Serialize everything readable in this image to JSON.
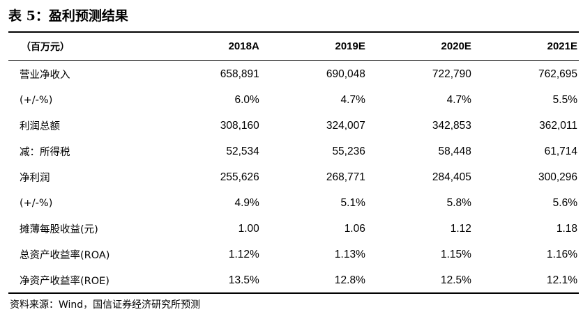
{
  "title": "表 5：盈利预测结果",
  "table": {
    "unit_header": "（百万元）",
    "year_headers": [
      "2018A",
      "2019E",
      "2020E",
      "2021E"
    ],
    "rows": [
      {
        "label": "营业净收入",
        "values": [
          "658,891",
          "690,048",
          "722,790",
          "762,695"
        ]
      },
      {
        "label": "(+/-%)",
        "values": [
          "6.0%",
          "4.7%",
          "4.7%",
          "5.5%"
        ]
      },
      {
        "label": "利润总额",
        "values": [
          "308,160",
          "324,007",
          "342,853",
          "362,011"
        ]
      },
      {
        "label": "减：所得税",
        "values": [
          "52,534",
          "55,236",
          "58,448",
          "61,714"
        ]
      },
      {
        "label": "净利润",
        "values": [
          "255,626",
          "268,771",
          "284,405",
          "300,296"
        ]
      },
      {
        "label": "(+/-%)",
        "values": [
          "4.9%",
          "5.1%",
          "5.8%",
          "5.6%"
        ]
      },
      {
        "label": "摊薄每股收益(元)",
        "values": [
          "1.00",
          "1.06",
          "1.12",
          "1.18"
        ]
      },
      {
        "label": "总资产收益率(ROA)",
        "values": [
          "1.12%",
          "1.13%",
          "1.15%",
          "1.16%"
        ]
      },
      {
        "label": "净资产收益率(ROE)",
        "values": [
          "13.5%",
          "12.8%",
          "12.5%",
          "12.1%"
        ]
      }
    ]
  },
  "source": "资料来源：Wind，国信证券经济研究所预测"
}
